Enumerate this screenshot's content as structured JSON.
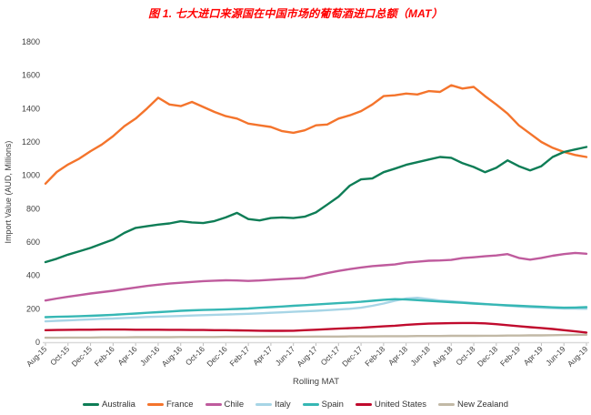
{
  "title": "图 1. 七大进口来源国在中国市场的葡萄酒进口总额（MAT）",
  "chart_data": {
    "type": "line",
    "title": "图 1. 七大进口来源国在中国市场的葡萄酒进口总额（MAT）",
    "xlabel": "Rolling MAT",
    "ylabel": "Import Value (AUD, Millions)",
    "ylim": [
      0,
      1800
    ],
    "ytick_step": 200,
    "yticks": [
      0,
      200,
      400,
      600,
      800,
      1000,
      1200,
      1400,
      1600,
      1800
    ],
    "grid": false,
    "legend_position": "bottom",
    "x_label_every": 2,
    "categories": [
      "Aug-15",
      "Sep-15",
      "Oct-15",
      "Nov-15",
      "Dec-15",
      "Jan-16",
      "Feb-16",
      "Mar-16",
      "Apr-16",
      "May-16",
      "Jun-16",
      "Jul-16",
      "Aug-16",
      "Sep-16",
      "Oct-16",
      "Nov-16",
      "Dec-16",
      "Jan-17",
      "Feb-17",
      "Mar-17",
      "Apr-17",
      "May-17",
      "Jun-17",
      "Jul-17",
      "Aug-17",
      "Sep-17",
      "Oct-17",
      "Nov-17",
      "Dec-17",
      "Jan-18",
      "Feb-18",
      "Mar-18",
      "Apr-18",
      "May-18",
      "Jun-18",
      "Jul-18",
      "Aug-18",
      "Sep-18",
      "Oct-18",
      "Nov-18",
      "Dec-18",
      "Jan-19",
      "Feb-19",
      "Mar-19",
      "Apr-19",
      "May-19",
      "Jun-19",
      "Jul-19",
      "Aug-19"
    ],
    "x_labels_shown": [
      "Aug-15",
      "Oct-15",
      "Dec-15",
      "Feb-16",
      "Apr-16",
      "Jun-16",
      "Aug-16",
      "Oct-16",
      "Dec-16",
      "Feb-17",
      "Apr-17",
      "Jun-17",
      "Aug-17",
      "Oct-17",
      "Dec-17",
      "Feb-18",
      "Apr-18",
      "Jun-18",
      "Aug-18",
      "Oct-18",
      "Dec-18",
      "Feb-19",
      "Apr-19",
      "Jun-19",
      "Aug-19"
    ],
    "series": [
      {
        "name": "Australia",
        "color": "#0e7d56",
        "values": [
          480,
          500,
          525,
          545,
          565,
          590,
          615,
          655,
          685,
          695,
          705,
          712,
          725,
          718,
          714,
          726,
          748,
          775,
          738,
          730,
          744,
          748,
          744,
          752,
          778,
          825,
          872,
          938,
          976,
          981,
          1019,
          1040,
          1063,
          1079,
          1095,
          1110,
          1105,
          1073,
          1050,
          1019,
          1045,
          1090,
          1055,
          1030,
          1055,
          1110,
          1140,
          1155,
          1170
        ]
      },
      {
        "name": "France",
        "color": "#f4742c",
        "values": [
          950,
          1020,
          1065,
          1100,
          1145,
          1185,
          1235,
          1295,
          1340,
          1400,
          1465,
          1425,
          1415,
          1440,
          1410,
          1380,
          1355,
          1340,
          1310,
          1300,
          1290,
          1265,
          1255,
          1270,
          1300,
          1305,
          1340,
          1360,
          1385,
          1425,
          1475,
          1480,
          1490,
          1485,
          1505,
          1500,
          1540,
          1520,
          1530,
          1475,
          1425,
          1370,
          1300,
          1250,
          1200,
          1165,
          1140,
          1122,
          1110
        ]
      },
      {
        "name": "Chile",
        "color": "#bf5b9d",
        "values": [
          250,
          262,
          272,
          282,
          292,
          300,
          308,
          318,
          328,
          337,
          345,
          351,
          356,
          361,
          366,
          369,
          371,
          370,
          367,
          370,
          374,
          378,
          381,
          385,
          400,
          414,
          427,
          438,
          448,
          456,
          461,
          466,
          477,
          482,
          488,
          490,
          493,
          504,
          509,
          515,
          520,
          528,
          505,
          495,
          505,
          518,
          528,
          535,
          530
        ]
      },
      {
        "name": "Italy",
        "color": "#a7d5e6",
        "values": [
          125,
          128,
          131,
          134,
          137,
          140,
          142,
          145,
          148,
          151,
          153,
          155,
          157,
          160,
          162,
          164,
          166,
          168,
          170,
          173,
          176,
          179,
          182,
          185,
          188,
          192,
          196,
          200,
          207,
          218,
          232,
          248,
          262,
          266,
          258,
          250,
          245,
          240,
          235,
          229,
          224,
          219,
          214,
          210,
          207,
          204,
          202,
          201,
          200
        ]
      },
      {
        "name": "Spain",
        "color": "#36b7b4",
        "values": [
          150,
          152,
          154,
          156,
          158,
          161,
          164,
          168,
          172,
          176,
          180,
          184,
          188,
          191,
          193,
          195,
          197,
          199,
          202,
          206,
          210,
          214,
          218,
          222,
          226,
          230,
          234,
          238,
          242,
          248,
          254,
          258,
          256,
          252,
          248,
          244,
          240,
          236,
          232,
          228,
          225,
          221,
          218,
          215,
          212,
          209,
          207,
          208,
          210
        ]
      },
      {
        "name": "United States",
        "color": "#c00a2d",
        "values": [
          72,
          73,
          74,
          75,
          75,
          76,
          76,
          76,
          75,
          75,
          75,
          74,
          74,
          73,
          73,
          72,
          72,
          71,
          70,
          69,
          68,
          68,
          69,
          72,
          75,
          78,
          81,
          84,
          87,
          91,
          95,
          99,
          104,
          108,
          111,
          113,
          114,
          115,
          115,
          113,
          108,
          102,
          96,
          90,
          85,
          79,
          72,
          65,
          58
        ]
      },
      {
        "name": "New Zealand",
        "color": "#c2b9a6",
        "values": [
          27,
          27,
          28,
          28,
          28,
          29,
          29,
          29,
          30,
          30,
          30,
          30,
          31,
          31,
          31,
          31,
          32,
          32,
          32,
          32,
          33,
          33,
          33,
          33,
          34,
          34,
          34,
          35,
          35,
          35,
          36,
          36,
          36,
          37,
          37,
          37,
          38,
          38,
          38,
          39,
          39,
          40,
          40,
          41,
          41,
          42,
          43,
          44,
          45
        ]
      }
    ],
    "axis_colors": {
      "tick_text": "#404040",
      "axis_line": "#d9d9d9",
      "tick_mark": "#bfbfbf"
    }
  }
}
